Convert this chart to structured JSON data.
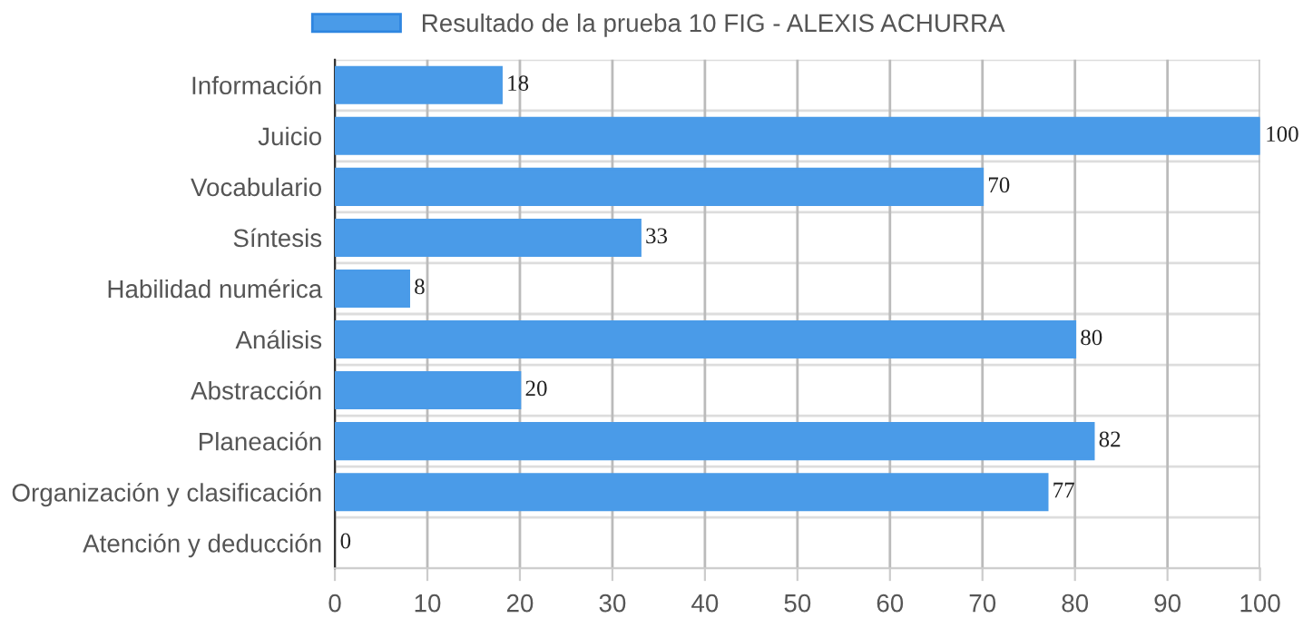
{
  "chart_data": {
    "type": "bar",
    "orientation": "horizontal",
    "categories": [
      "Información",
      "Juicio",
      "Vocabulario",
      "Síntesis",
      "Habilidad numérica",
      "Análisis",
      "Abstracción",
      "Planeación",
      "Organización y clasificación",
      "Atención y deducción"
    ],
    "series": [
      {
        "name": "Resultado de la prueba 10 FIG - ALEXIS ACHURRA",
        "color": "#4a9be8",
        "values": [
          18,
          100,
          70,
          33,
          8,
          80,
          20,
          82,
          77,
          0
        ]
      }
    ],
    "xlim": [
      0,
      100
    ],
    "xticks": [
      0,
      10,
      20,
      30,
      40,
      50,
      60,
      70,
      80,
      90,
      100
    ],
    "grid": true,
    "legend": "top",
    "data_labels": true
  }
}
